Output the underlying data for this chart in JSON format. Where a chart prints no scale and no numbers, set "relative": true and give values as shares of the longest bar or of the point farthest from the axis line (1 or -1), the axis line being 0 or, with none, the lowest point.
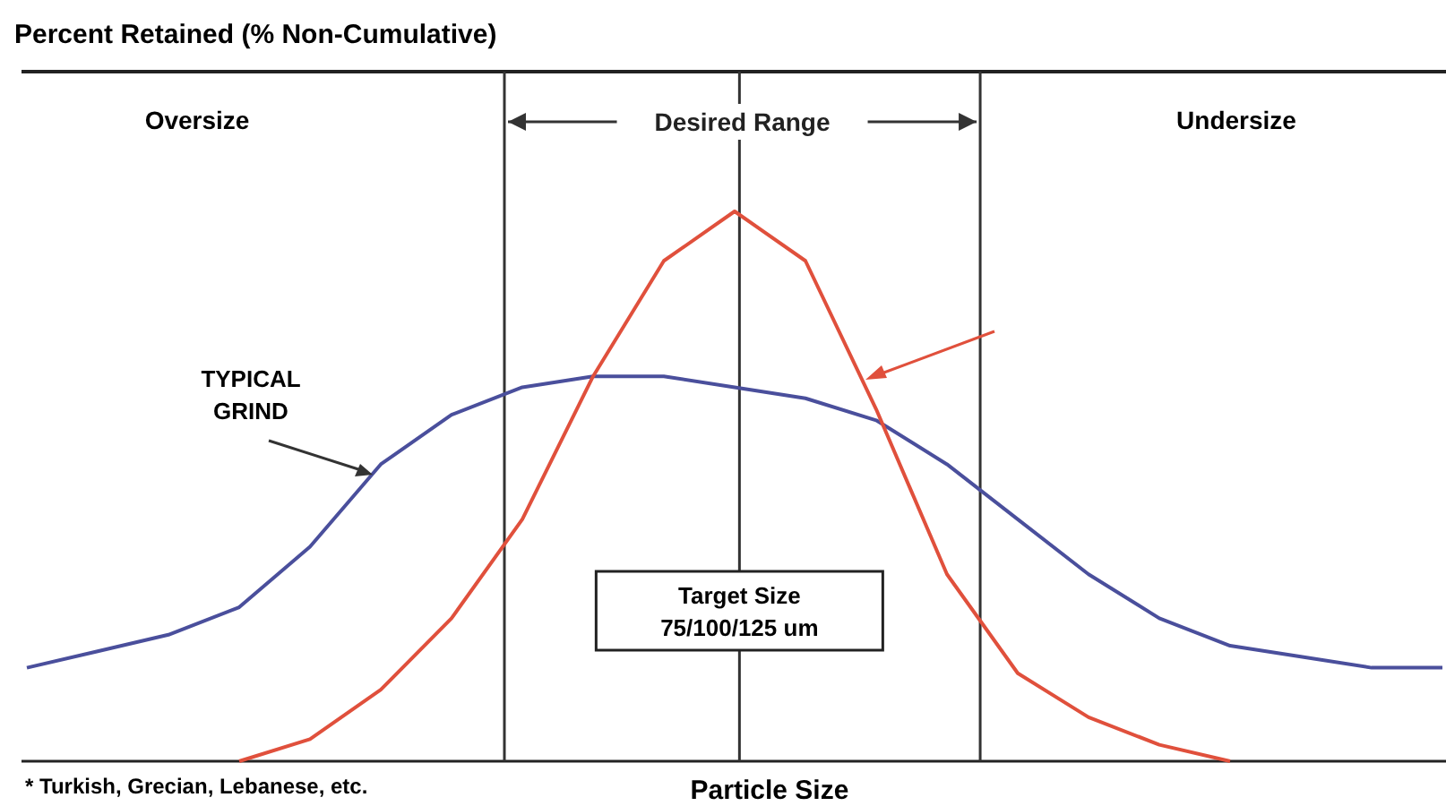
{
  "chart_data": {
    "type": "line",
    "title": "Percent Retained (% Non-Cumulative)",
    "xlabel": "Particle Size",
    "relative": true,
    "marker": "none",
    "line_style": "solid",
    "categories": [
      null,
      null,
      null,
      null,
      null,
      null,
      null,
      null,
      null,
      null,
      null,
      null,
      null,
      null,
      null,
      null,
      null,
      null,
      null,
      null,
      null
    ],
    "series": [
      {
        "color": "#4a4f9c",
        "values": [
          0.17,
          0.2,
          0.23,
          0.28,
          0.39,
          0.54,
          0.63,
          0.68,
          0.7,
          0.7,
          0.68,
          0.66,
          0.62,
          0.54,
          0.44,
          0.34,
          0.26,
          0.21,
          0.19,
          0.17,
          0.17
        ]
      },
      {
        "color": "#e0503c",
        "values": [
          null,
          null,
          null,
          0,
          0.04,
          0.13,
          0.26,
          0.44,
          0.7,
          0.91,
          1,
          0.91,
          0.64,
          0.34,
          0.16,
          0.08,
          0.03,
          0,
          null,
          null,
          null
        ]
      }
    ],
    "annotations": [
      "Oversize",
      "Undersize",
      "* Turkish, Grecian, Lebanese, etc.",
      "TYPICAL GRIND",
      "Desired Range",
      "Target Size 75/100/125 um"
    ]
  }
}
